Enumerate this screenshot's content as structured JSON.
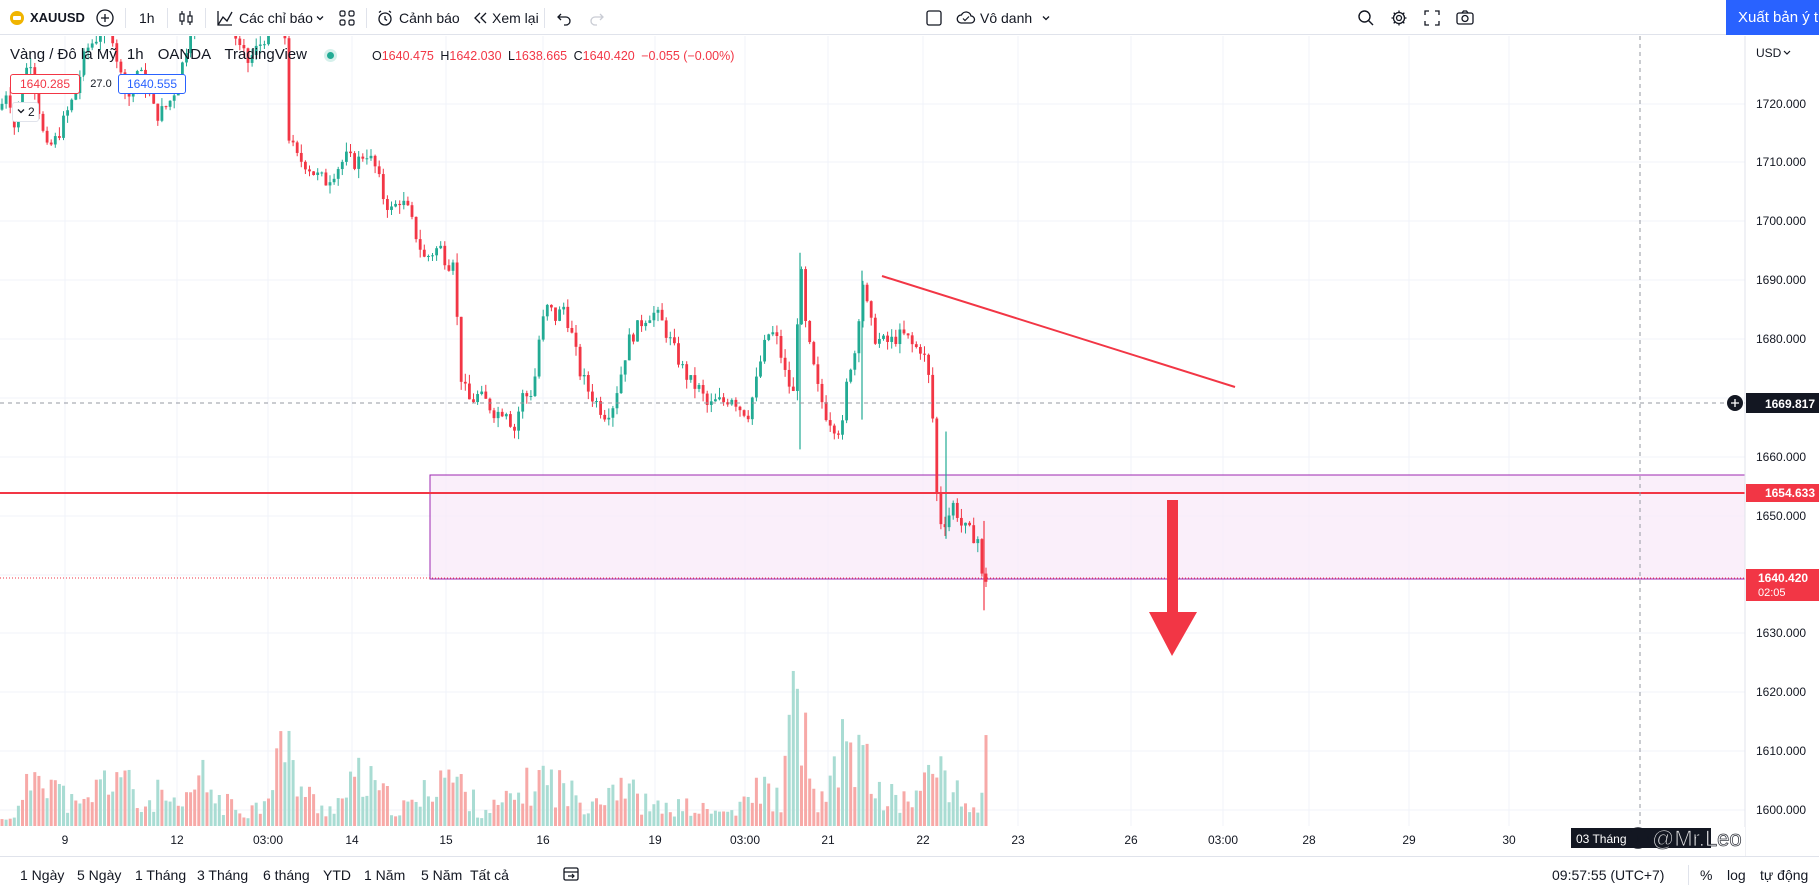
{
  "toolbar": {
    "symbol": "XAUUSD",
    "interval": "1h",
    "indicators_label": "Các chỉ báo",
    "alert_label": "Cảnh báo",
    "replay_label": "Xem lại",
    "layout_name": "Vô danh",
    "publish_label": "Xuất bản ý tưởng"
  },
  "legend": {
    "title": "Vàng / Đô la Mỹ",
    "interval": "1h",
    "broker": "OANDA",
    "source": "TradingView",
    "open_label": "O",
    "open": "1640.475",
    "high_label": "H",
    "high": "1642.030",
    "low_label": "L",
    "low": "1638.665",
    "close_label": "C",
    "close": "1640.420",
    "change": "−0.055 (−0.00%)",
    "bid": "1640.285",
    "spread": "27.0",
    "ask": "1640.555",
    "pane_count": "2"
  },
  "price_axis": {
    "currency": "USD",
    "ticks": [
      "1720.000",
      "1710.000",
      "1700.000",
      "1690.000",
      "1680.000",
      "1670.000",
      "1660.000",
      "1650.000",
      "1640.000",
      "1630.000",
      "1620.000",
      "1610.000",
      "1600.000"
    ],
    "crosshair_label": "1669.817",
    "line_label": "1654.633",
    "last_price": "1640.420",
    "countdown": "02:05"
  },
  "time_axis": {
    "ticks": [
      "9",
      "12",
      "03:00",
      "14",
      "15",
      "16",
      "19",
      "03:00",
      "21",
      "22",
      "23",
      "26",
      "03:00",
      "28",
      "29",
      "30"
    ],
    "crosshair_label": "03 Tháng",
    "watermark": "@Mr.Leo"
  },
  "bottombar": {
    "ranges": [
      "1 Ngày",
      "5 Ngày",
      "1 Tháng",
      "3 Tháng",
      "6 tháng",
      "YTD",
      "1 Năm",
      "5 Năm",
      "Tất cả"
    ],
    "clock": "09:57:55 (UTC+7)",
    "percent": "%",
    "log": "log",
    "auto": "tự động"
  },
  "chart_data": {
    "type": "candlestick",
    "symbol": "XAUUSD",
    "ylim": [
      1597,
      1731
    ],
    "anchors": [
      [
        0,
        1712
      ],
      [
        8,
        1716
      ],
      [
        14,
        1709
      ],
      [
        22,
        1716
      ],
      [
        30,
        1721
      ],
      [
        40,
        1711
      ],
      [
        46,
        1705
      ],
      [
        56,
        1707
      ],
      [
        66,
        1711
      ],
      [
        76,
        1715
      ],
      [
        86,
        1722
      ],
      [
        96,
        1724
      ],
      [
        104,
        1726
      ],
      [
        112,
        1725
      ],
      [
        120,
        1718
      ],
      [
        130,
        1714
      ],
      [
        138,
        1719
      ],
      [
        148,
        1715
      ],
      [
        156,
        1711
      ],
      [
        164,
        1712
      ],
      [
        172,
        1714
      ],
      [
        180,
        1718
      ],
      [
        186,
        1722
      ],
      [
        194,
        1730
      ],
      [
        202,
        1729
      ],
      [
        210,
        1731
      ],
      [
        216,
        1732
      ],
      [
        224,
        1727
      ],
      [
        232,
        1726
      ],
      [
        240,
        1722
      ],
      [
        248,
        1720
      ],
      [
        256,
        1722
      ],
      [
        264,
        1724
      ],
      [
        272,
        1727
      ],
      [
        280,
        1731
      ],
      [
        284,
        1729
      ],
      [
        288,
        1708
      ],
      [
        296,
        1704
      ],
      [
        306,
        1703
      ],
      [
        316,
        1701
      ],
      [
        326,
        1700
      ],
      [
        336,
        1702
      ],
      [
        346,
        1704
      ],
      [
        356,
        1703
      ],
      [
        366,
        1705
      ],
      [
        376,
        1702
      ],
      [
        384,
        1697
      ],
      [
        392,
        1695
      ],
      [
        400,
        1697
      ],
      [
        408,
        1695
      ],
      [
        416,
        1691
      ],
      [
        424,
        1687
      ],
      [
        432,
        1688
      ],
      [
        440,
        1689
      ],
      [
        448,
        1686
      ],
      [
        455,
        1688
      ],
      [
        458,
        1672
      ],
      [
        462,
        1666
      ],
      [
        470,
        1663
      ],
      [
        478,
        1664
      ],
      [
        486,
        1663
      ],
      [
        496,
        1661
      ],
      [
        506,
        1662
      ],
      [
        514,
        1658
      ],
      [
        522,
        1664
      ],
      [
        530,
        1664
      ],
      [
        536,
        1668
      ],
      [
        540,
        1675
      ],
      [
        548,
        1679
      ],
      [
        556,
        1677
      ],
      [
        564,
        1679
      ],
      [
        572,
        1674
      ],
      [
        580,
        1668
      ],
      [
        588,
        1665
      ],
      [
        596,
        1663
      ],
      [
        604,
        1661
      ],
      [
        612,
        1662
      ],
      [
        620,
        1667
      ],
      [
        628,
        1673
      ],
      [
        636,
        1675
      ],
      [
        644,
        1677
      ],
      [
        652,
        1678
      ],
      [
        660,
        1677
      ],
      [
        668,
        1674
      ],
      [
        676,
        1671
      ],
      [
        684,
        1668
      ],
      [
        692,
        1666
      ],
      [
        700,
        1665
      ],
      [
        708,
        1662
      ],
      [
        716,
        1663
      ],
      [
        724,
        1663
      ],
      [
        732,
        1664
      ],
      [
        740,
        1662
      ],
      [
        748,
        1661
      ],
      [
        756,
        1666
      ],
      [
        762,
        1671
      ],
      [
        770,
        1675
      ],
      [
        778,
        1673
      ],
      [
        786,
        1667
      ],
      [
        794,
        1664
      ],
      [
        800,
        1687
      ],
      [
        806,
        1675
      ],
      [
        812,
        1670
      ],
      [
        818,
        1665
      ],
      [
        826,
        1661
      ],
      [
        834,
        1659
      ],
      [
        842,
        1658
      ],
      [
        848,
        1668
      ],
      [
        856,
        1672
      ],
      [
        862,
        1684
      ],
      [
        868,
        1678
      ],
      [
        874,
        1674
      ],
      [
        882,
        1673
      ],
      [
        890,
        1673
      ],
      [
        898,
        1674
      ],
      [
        906,
        1674
      ],
      [
        914,
        1672
      ],
      [
        922,
        1672
      ],
      [
        928,
        1668
      ],
      [
        934,
        1658
      ],
      [
        938,
        1643
      ],
      [
        946,
        1643
      ],
      [
        954,
        1646
      ],
      [
        962,
        1642
      ],
      [
        970,
        1641
      ],
      [
        978,
        1640
      ],
      [
        984,
        1630
      ],
      [
        990,
        1640
      ]
    ],
    "volume_anchors": [
      [
        0,
        3
      ],
      [
        20,
        10
      ],
      [
        40,
        45
      ],
      [
        60,
        20
      ],
      [
        80,
        10
      ],
      [
        100,
        25
      ],
      [
        120,
        35
      ],
      [
        140,
        10
      ],
      [
        160,
        20
      ],
      [
        180,
        8
      ],
      [
        200,
        30
      ],
      [
        220,
        15
      ],
      [
        240,
        10
      ],
      [
        260,
        12
      ],
      [
        280,
        50
      ],
      [
        290,
        40
      ],
      [
        300,
        25
      ],
      [
        320,
        10
      ],
      [
        340,
        15
      ],
      [
        360,
        30
      ],
      [
        380,
        20
      ],
      [
        400,
        10
      ],
      [
        420,
        15
      ],
      [
        440,
        35
      ],
      [
        460,
        25
      ],
      [
        480,
        10
      ],
      [
        500,
        12
      ],
      [
        520,
        20
      ],
      [
        540,
        30
      ],
      [
        560,
        25
      ],
      [
        580,
        15
      ],
      [
        600,
        20
      ],
      [
        620,
        30
      ],
      [
        640,
        15
      ],
      [
        660,
        10
      ],
      [
        680,
        12
      ],
      [
        700,
        10
      ],
      [
        720,
        8
      ],
      [
        740,
        10
      ],
      [
        760,
        25
      ],
      [
        780,
        15
      ],
      [
        800,
        90
      ],
      [
        810,
        20
      ],
      [
        820,
        15
      ],
      [
        830,
        20
      ],
      [
        846,
        55
      ],
      [
        862,
        40
      ],
      [
        880,
        20
      ],
      [
        900,
        15
      ],
      [
        920,
        20
      ],
      [
        940,
        40
      ],
      [
        960,
        15
      ],
      [
        980,
        10
      ],
      [
        986,
        40
      ],
      [
        990,
        10
      ]
    ]
  }
}
